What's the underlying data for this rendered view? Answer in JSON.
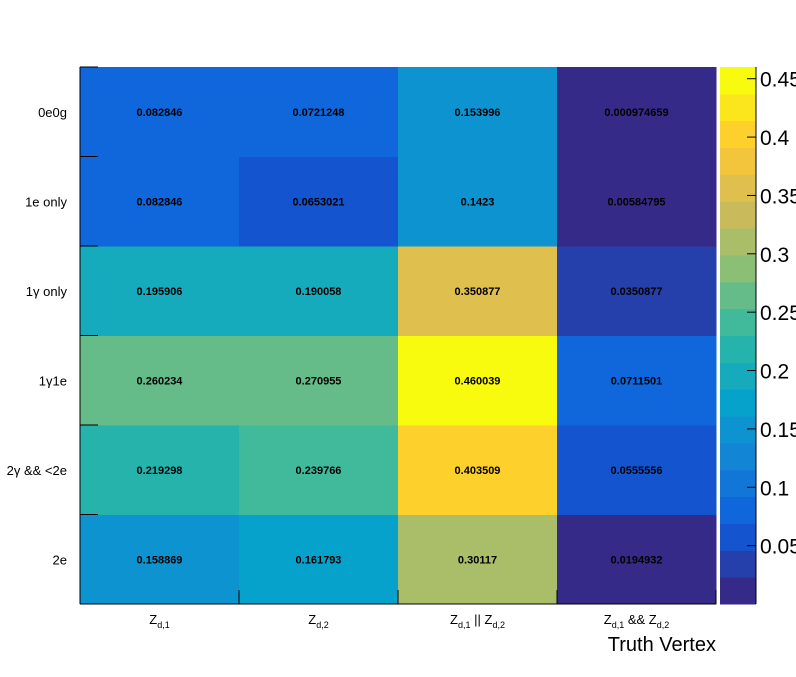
{
  "chart_data": {
    "type": "heatmap",
    "title": "",
    "xlabel": "Truth Vertex",
    "ylabel": "",
    "x_categories": [
      {
        "base": "Z",
        "sub": "d,1"
      },
      {
        "base": "Z",
        "sub": "d,2"
      },
      {
        "parts": [
          {
            "base": "Z",
            "sub": "d,1"
          },
          {
            "op": " || "
          },
          {
            "base": "Z",
            "sub": "d,2"
          }
        ]
      },
      {
        "parts": [
          {
            "base": "Z",
            "sub": "d,1"
          },
          {
            "op": " && "
          },
          {
            "base": "Z",
            "sub": "d,2"
          }
        ]
      }
    ],
    "y_categories": [
      "2e",
      "2γ && <2e",
      "1γ1e",
      "1γ only",
      "1e only",
      "0e0g"
    ],
    "values": [
      [
        0.158869,
        0.161793,
        0.30117,
        0.0194932
      ],
      [
        0.219298,
        0.239766,
        0.403509,
        0.0555556
      ],
      [
        0.260234,
        0.270955,
        0.460039,
        0.0711501
      ],
      [
        0.195906,
        0.190058,
        0.350877,
        0.0350877
      ],
      [
        0.082846,
        0.0653021,
        0.1423,
        0.00584795
      ],
      [
        0.082846,
        0.0721248,
        0.153996,
        0.000974659
      ]
    ],
    "cell_labels": [
      [
        "0.158869",
        "0.161793",
        "0.30117",
        "0.0194932"
      ],
      [
        "0.219298",
        "0.239766",
        "0.403509",
        "0.0555556"
      ],
      [
        "0.260234",
        "0.270955",
        "0.460039",
        "0.0711501"
      ],
      [
        "0.195906",
        "0.190058",
        "0.350877",
        "0.0350877"
      ],
      [
        "0.082846",
        "0.0653021",
        "0.1423",
        "0.00584795"
      ],
      [
        "0.082846",
        "0.0721248",
        "0.153996",
        "0.000974659"
      ]
    ],
    "z_range": [
      0,
      0.460039
    ],
    "colorbar": {
      "ticks": [
        0.05,
        0.1,
        0.15,
        0.2,
        0.25,
        0.3,
        0.35,
        0.4,
        0.45
      ],
      "tick_labels": [
        "0.05",
        "0.1",
        "0.15",
        "0.2",
        "0.25",
        "0.3",
        "0.35",
        "0.4",
        "0.45"
      ],
      "n_levels": 20
    },
    "palette": [
      "#352a87",
      "#0f5cdd",
      "#1481d6",
      "#06a4ca",
      "#2eb7a4",
      "#87bf77",
      "#d1bb59",
      "#fec832",
      "#f9fb0e"
    ],
    "grid": false
  }
}
